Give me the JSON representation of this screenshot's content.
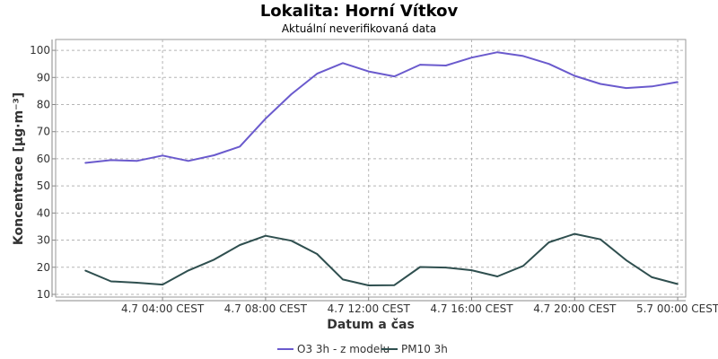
{
  "chart_data": {
    "type": "line",
    "title": "Lokalita: Horní Vítkov",
    "subtitle": "Aktuální neverifikovaná data",
    "xlabel": "Datum a čas",
    "ylabel": "Koncentrace [µg·m⁻³]",
    "ylim": [
      9,
      104
    ],
    "yticks": [
      10,
      20,
      30,
      40,
      50,
      60,
      70,
      80,
      90,
      100
    ],
    "x": [
      "4.7 01:00",
      "4.7 02:00",
      "4.7 03:00",
      "4.7 04:00",
      "4.7 05:00",
      "4.7 06:00",
      "4.7 07:00",
      "4.7 08:00",
      "4.7 09:00",
      "4.7 10:00",
      "4.7 11:00",
      "4.7 12:00",
      "4.7 13:00",
      "4.7 14:00",
      "4.7 15:00",
      "4.7 16:00",
      "4.7 17:00",
      "4.7 18:00",
      "4.7 19:00",
      "4.7 20:00",
      "4.7 21:00",
      "4.7 22:00",
      "4.7 23:00",
      "5.7 00:00"
    ],
    "xtick_labels": [
      {
        "label": "4.7 04:00 CEST",
        "index": 3
      },
      {
        "label": "4.7 08:00 CEST",
        "index": 7
      },
      {
        "label": "4.7 12:00 CEST",
        "index": 11
      },
      {
        "label": "4.7 16:00 CEST",
        "index": 15
      },
      {
        "label": "4.7 20:00 CEST",
        "index": 19
      },
      {
        "label": "5.7 00:00 CEST",
        "index": 23
      }
    ],
    "grid": true,
    "legend_position": "bottom",
    "series": [
      {
        "name": "O3 3h - z modelu",
        "color": "#6a5acd",
        "values": [
          58.5,
          59.5,
          59.2,
          61.2,
          59.2,
          61.3,
          64.5,
          74.8,
          83.8,
          91.4,
          95.3,
          92.2,
          90.4,
          94.7,
          94.4,
          97.3,
          99.3,
          97.9,
          95.0,
          90.6,
          87.6,
          86.1,
          86.7,
          88.3
        ]
      },
      {
        "name": "PM10 3h",
        "color": "#2f4f4f",
        "values": [
          18.8,
          14.8,
          14.3,
          13.6,
          18.8,
          22.8,
          28.2,
          31.6,
          29.8,
          24.9,
          15.5,
          13.3,
          13.4,
          20.1,
          19.9,
          18.9,
          16.6,
          20.5,
          29.2,
          32.3,
          30.3,
          22.6,
          16.3,
          13.8
        ]
      }
    ]
  }
}
